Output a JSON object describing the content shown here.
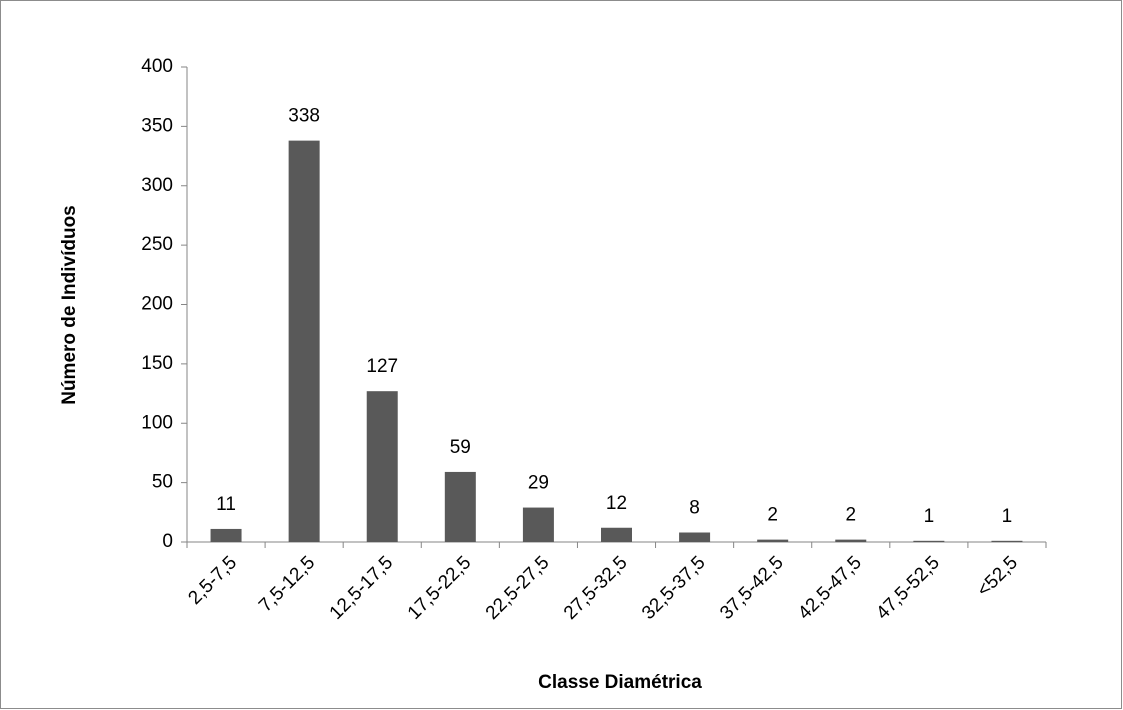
{
  "chart_data": {
    "type": "bar",
    "x_label": "Classe Diamétrica",
    "y_label": "Número de Indivíduos",
    "categories": [
      "2,5-7,5",
      "7,5-12,5",
      "12,5-17,5",
      "17,5-22,5",
      "22,5-27,5",
      "27,5-32,5",
      "32,5-37,5",
      "37,5-42,5",
      "42,5-47,5",
      "47,5-52,5",
      "<52,5"
    ],
    "values": [
      11,
      338,
      127,
      59,
      29,
      12,
      8,
      2,
      2,
      1,
      1
    ],
    "color": "#595959",
    "ylim": [
      0,
      400
    ],
    "yticks": [
      0,
      50,
      100,
      150,
      200,
      250,
      300,
      350,
      400
    ],
    "grid": false
  }
}
